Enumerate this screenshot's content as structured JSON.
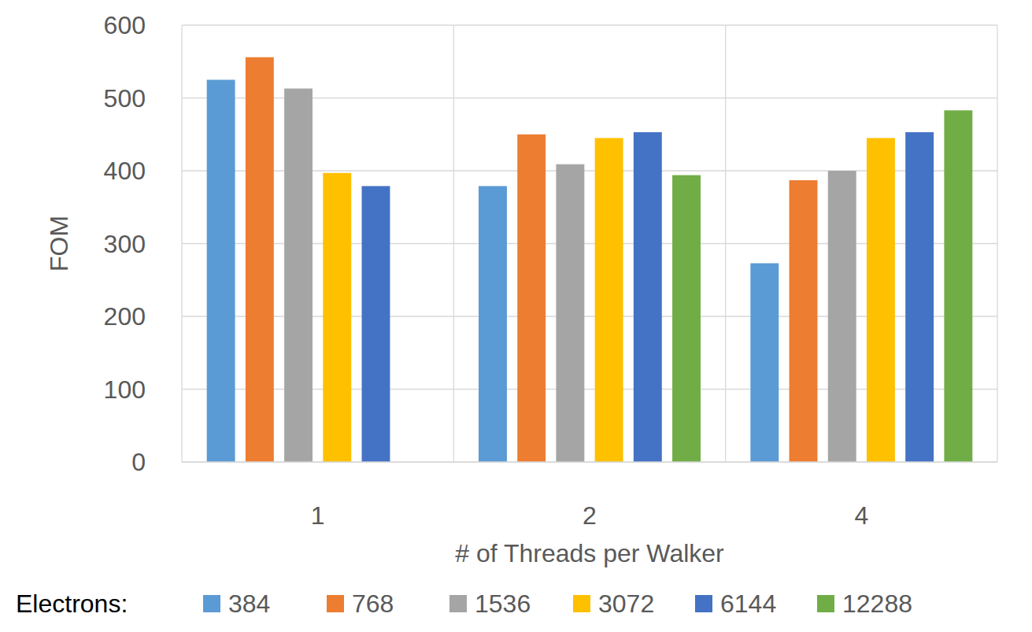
{
  "chart_data": {
    "type": "bar",
    "y_label": "FOM",
    "x_label": "# of Threads per Walker",
    "legend_title": "Electrons:",
    "categories": [
      "1",
      "2",
      "4"
    ],
    "series": [
      {
        "name": "384",
        "color": "#5b9bd5",
        "values": [
          525,
          379,
          273
        ]
      },
      {
        "name": "768",
        "color": "#ed7d31",
        "values": [
          556,
          450,
          387
        ]
      },
      {
        "name": "1536",
        "color": "#a5a5a5",
        "values": [
          513,
          409,
          400
        ]
      },
      {
        "name": "3072",
        "color": "#ffc000",
        "values": [
          397,
          445,
          445
        ]
      },
      {
        "name": "6144",
        "color": "#4472c4",
        "values": [
          379,
          453,
          453
        ]
      },
      {
        "name": "12288",
        "color": "#70ad47",
        "values": [
          null,
          394,
          483
        ]
      }
    ],
    "ylim": [
      0,
      600
    ],
    "yticks": [
      0,
      100,
      200,
      300,
      400,
      500,
      600
    ],
    "grid": true,
    "legend": "bottom"
  }
}
